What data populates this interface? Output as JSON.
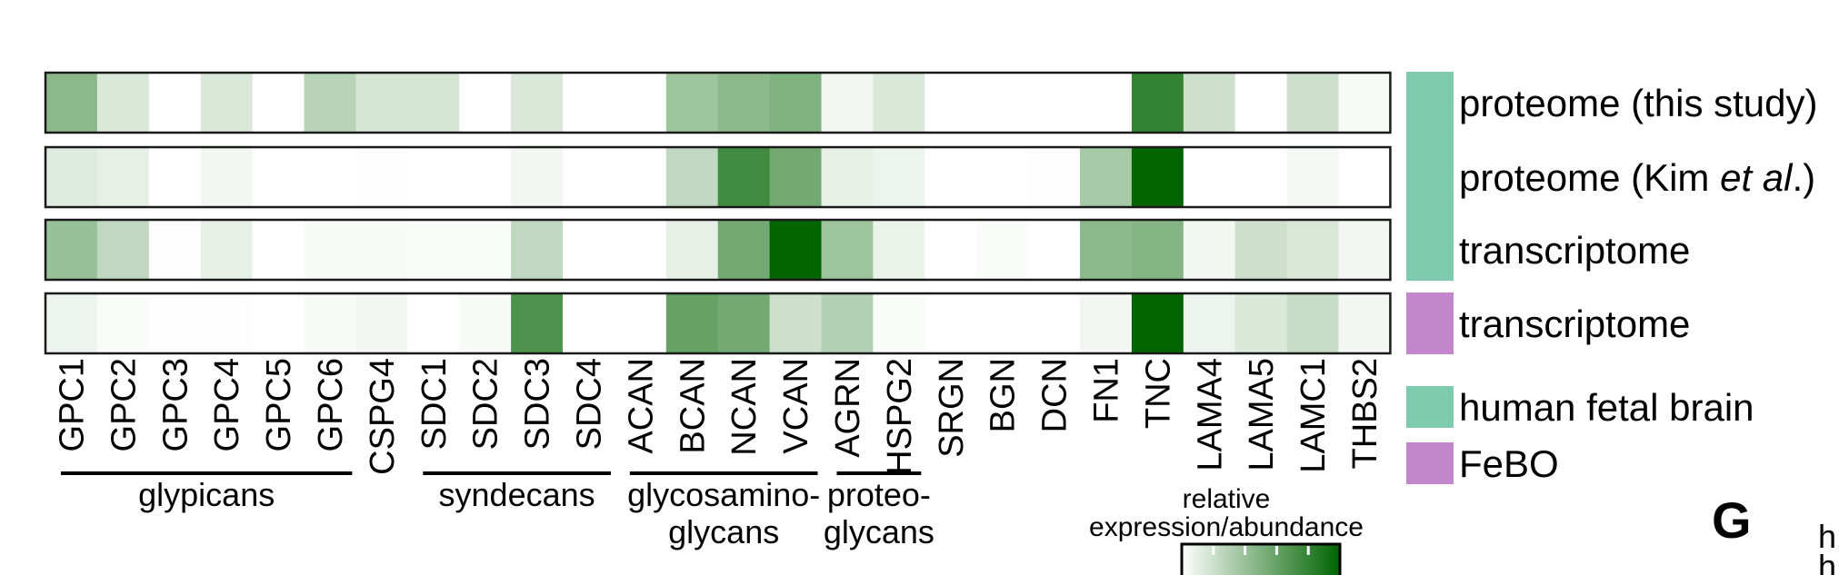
{
  "chart_data": {
    "type": "heatmap",
    "genes": [
      "GPC1",
      "GPC2",
      "GPC3",
      "GPC4",
      "GPC5",
      "GPC6",
      "CSPG4",
      "SDC1",
      "SDC2",
      "SDC3",
      "SDC4",
      "ACAN",
      "BCAN",
      "NCAN",
      "VCAN",
      "AGRN",
      "HSPG2",
      "SRGN",
      "BGN",
      "DCN",
      "FN1",
      "TNC",
      "LAMA4",
      "LAMA5",
      "LAMC1",
      "THBS2"
    ],
    "rows": [
      {
        "label_parts": [
          {
            "text": "proteome (this study)",
            "italic": false
          }
        ],
        "source": "human fetal brain",
        "values": [
          0.45,
          0.15,
          0.0,
          0.15,
          0.0,
          0.28,
          0.17,
          0.17,
          0.0,
          0.15,
          0.0,
          0.0,
          0.38,
          0.45,
          0.5,
          0.05,
          0.15,
          0.0,
          0.0,
          0.0,
          0.0,
          0.8,
          0.2,
          0.0,
          0.2,
          0.03
        ]
      },
      {
        "label_parts": [
          {
            "text": "proteome (Kim ",
            "italic": false
          },
          {
            "text": "et al",
            "italic": true
          },
          {
            "text": ".)",
            "italic": false
          }
        ],
        "source": "human fetal brain",
        "values": [
          0.13,
          0.1,
          0.0,
          0.05,
          0.0,
          0.0,
          0.01,
          0.0,
          0.0,
          0.05,
          0.0,
          0.0,
          0.25,
          0.75,
          0.55,
          0.1,
          0.07,
          0.0,
          0.0,
          0.01,
          0.35,
          1.0,
          0.0,
          0.0,
          0.04,
          0.0
        ]
      },
      {
        "label_parts": [
          {
            "text": "transcriptome",
            "italic": false
          }
        ],
        "source": "human fetal brain",
        "values": [
          0.4,
          0.25,
          0.01,
          0.1,
          0.0,
          0.03,
          0.03,
          0.02,
          0.02,
          0.25,
          0.0,
          0.0,
          0.1,
          0.55,
          1.0,
          0.38,
          0.08,
          0.0,
          0.02,
          0.0,
          0.45,
          0.48,
          0.05,
          0.2,
          0.15,
          0.05
        ]
      },
      {
        "label_parts": [
          {
            "text": "transcriptome",
            "italic": false
          }
        ],
        "source": "FeBO",
        "values": [
          0.07,
          0.02,
          0.01,
          0.01,
          0.0,
          0.03,
          0.05,
          0.0,
          0.03,
          0.7,
          0.0,
          0.0,
          0.6,
          0.55,
          0.2,
          0.3,
          0.02,
          0.0,
          0.0,
          0.0,
          0.05,
          1.0,
          0.07,
          0.15,
          0.22,
          0.05
        ]
      }
    ],
    "groups": [
      {
        "lines": [
          "glypicans"
        ],
        "from": "GPC1",
        "to": "GPC6"
      },
      {
        "lines": [
          "syndecans"
        ],
        "from": "SDC1",
        "to": "SDC4"
      },
      {
        "lines": [
          "glycosamino-",
          "glycans"
        ],
        "from": "ACAN",
        "to": "VCAN"
      },
      {
        "lines": [
          "proteo-",
          "glycans"
        ],
        "from": "AGRN",
        "to": "HSPG2"
      }
    ],
    "source_legend": [
      {
        "label": "human fetal brain",
        "color": "#7fcbaf"
      },
      {
        "label": "FeBO",
        "color": "#c385cc"
      }
    ],
    "color_scale": {
      "title_lines": [
        "relative",
        "expression/abundance"
      ],
      "low_color": "#ffffff",
      "high_color": "#006400",
      "range": [
        0,
        1
      ]
    }
  },
  "panel_letter": "G",
  "right_edge_fragment": [
    "h",
    "h"
  ]
}
